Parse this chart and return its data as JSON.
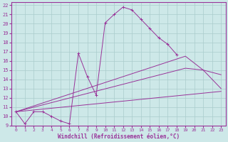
{
  "background_color": "#cde8e8",
  "grid_color": "#aacccc",
  "line_color": "#993399",
  "xlim": [
    -0.5,
    23.5
  ],
  "ylim": [
    9,
    22.3
  ],
  "xticks": [
    0,
    1,
    2,
    3,
    4,
    5,
    6,
    7,
    8,
    9,
    10,
    11,
    12,
    13,
    14,
    15,
    16,
    17,
    18,
    19,
    20,
    21,
    22,
    23
  ],
  "yticks": [
    9,
    10,
    11,
    12,
    13,
    14,
    15,
    16,
    17,
    18,
    19,
    20,
    21,
    22
  ],
  "xlabel": "Windchill (Refroidissement éolien,°C)",
  "line1_x": [
    0,
    1,
    2,
    3,
    4,
    5,
    6,
    7,
    8,
    9,
    10,
    11,
    12,
    13,
    14,
    15,
    16,
    17,
    18
  ],
  "line1_y": [
    10.5,
    9.2,
    10.5,
    10.5,
    10.0,
    9.5,
    9.2,
    16.8,
    14.3,
    12.3,
    20.1,
    21.0,
    21.8,
    21.5,
    20.5,
    19.5,
    18.5,
    17.8,
    16.7
  ],
  "line2_x": [
    0,
    19,
    21,
    23
  ],
  "line2_y": [
    10.5,
    16.5,
    15.0,
    13.0
  ],
  "line3_x": [
    0,
    19,
    21,
    23
  ],
  "line3_y": [
    10.5,
    15.2,
    15.0,
    14.5
  ],
  "line4_x": [
    0,
    23
  ],
  "line4_y": [
    10.5,
    12.7
  ],
  "axis_label_fontsize": 5.5,
  "tick_fontsize": 5
}
